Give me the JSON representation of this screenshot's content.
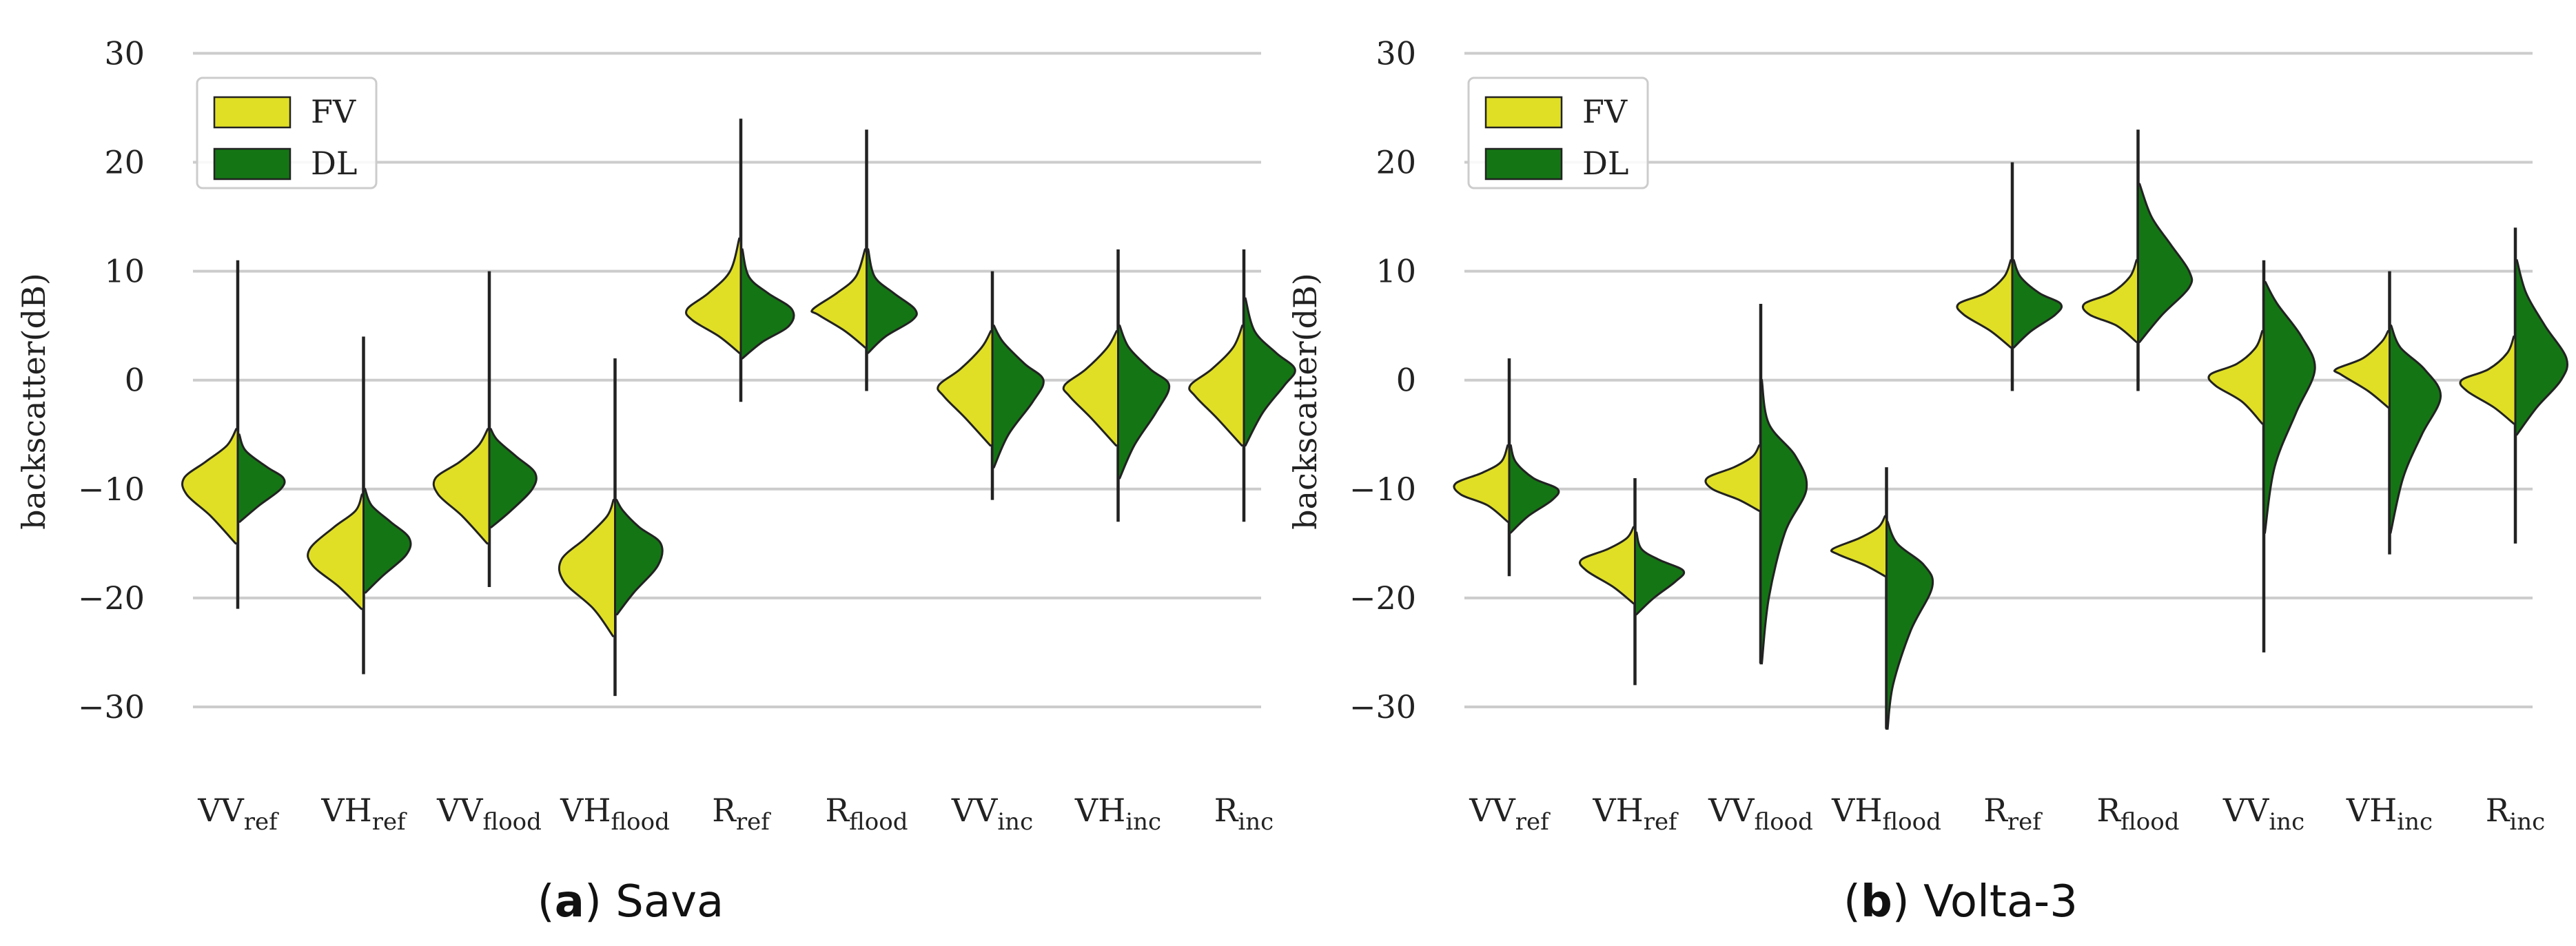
{
  "chart_data": [
    {
      "type": "violin",
      "id": "sava",
      "caption_letter": "a",
      "caption_name": "Sava",
      "title": "",
      "xlabel": "",
      "ylabel": "backscatter(dB)",
      "ylim": [
        -35,
        33
      ],
      "yticks": [
        30,
        20,
        10,
        0,
        -10,
        -20,
        -30
      ],
      "ytick_labels": [
        "30",
        "20",
        "10",
        "0",
        "−10",
        "−20",
        "−30"
      ],
      "legend": [
        {
          "name": "FV",
          "color": "#e0df25"
        },
        {
          "name": "DL",
          "color": "#147514"
        }
      ],
      "legend_position": "top-left",
      "categories": [
        {
          "main": "VV",
          "sub": "ref"
        },
        {
          "main": "VH",
          "sub": "ref"
        },
        {
          "main": "VV",
          "sub": "flood"
        },
        {
          "main": "VH",
          "sub": "flood"
        },
        {
          "main": "R",
          "sub": "ref"
        },
        {
          "main": "R",
          "sub": "flood"
        },
        {
          "main": "VV",
          "sub": "inc"
        },
        {
          "main": "VH",
          "sub": "inc"
        },
        {
          "main": "R",
          "sub": "inc"
        }
      ],
      "violins": [
        {
          "min": -21,
          "max": 11,
          "FV": {
            "y": [
              -15,
              -12.5,
              -10.5,
              -9,
              -7.5,
              -6,
              -4.5
            ],
            "w": [
              0.04,
              0.5,
              0.95,
              1.0,
              0.6,
              0.2,
              0.03
            ]
          },
          "DL": {
            "y": [
              -13,
              -11.5,
              -10,
              -9,
              -8,
              -6.5,
              -5
            ],
            "w": [
              0.04,
              0.4,
              0.8,
              0.85,
              0.55,
              0.15,
              0.03
            ]
          }
        },
        {
          "min": -27,
          "max": 4,
          "FV": {
            "y": [
              -21,
              -19,
              -17,
              -15.5,
              -13.5,
              -12,
              -10.5
            ],
            "w": [
              0.04,
              0.45,
              0.95,
              1.0,
              0.55,
              0.15,
              0.03
            ]
          },
          "DL": {
            "y": [
              -19.5,
              -18,
              -16,
              -14.5,
              -13,
              -11.5,
              -10
            ],
            "w": [
              0.04,
              0.35,
              0.8,
              0.85,
              0.5,
              0.15,
              0.03
            ]
          }
        },
        {
          "min": -19,
          "max": 10,
          "FV": {
            "y": [
              -15,
              -12.5,
              -10.5,
              -9,
              -7.5,
              -6,
              -4.5
            ],
            "w": [
              0.04,
              0.5,
              0.95,
              1.0,
              0.55,
              0.2,
              0.03
            ]
          },
          "DL": {
            "y": [
              -13.5,
              -12,
              -10,
              -8.5,
              -7,
              -5.5,
              -4.5
            ],
            "w": [
              0.04,
              0.4,
              0.8,
              0.85,
              0.5,
              0.15,
              0.03
            ]
          }
        },
        {
          "min": -29,
          "max": 2,
          "FV": {
            "y": [
              -23.5,
              -21,
              -18.5,
              -16.5,
              -14.5,
              -12.5,
              -11
            ],
            "w": [
              0.04,
              0.4,
              0.95,
              1.0,
              0.55,
              0.15,
              0.03
            ]
          },
          "DL": {
            "y": [
              -21.5,
              -19.5,
              -17,
              -15,
              -13.5,
              -12,
              -11
            ],
            "w": [
              0.04,
              0.35,
              0.8,
              0.85,
              0.45,
              0.15,
              0.03
            ]
          }
        },
        {
          "min": -2,
          "max": 24,
          "FV": {
            "y": [
              2.5,
              4,
              5.5,
              6.5,
              8,
              10,
              13
            ],
            "w": [
              0.03,
              0.4,
              0.9,
              1.0,
              0.6,
              0.2,
              0.03
            ]
          },
          "DL": {
            "y": [
              2,
              3.5,
              5,
              6.5,
              8,
              9.5,
              12
            ],
            "w": [
              0.03,
              0.4,
              0.9,
              0.95,
              0.5,
              0.15,
              0.03
            ]
          }
        },
        {
          "min": -1,
          "max": 23,
          "FV": {
            "y": [
              3,
              4.5,
              6,
              6.5,
              8,
              9.5,
              12
            ],
            "w": [
              0.03,
              0.4,
              0.9,
              1.0,
              0.55,
              0.2,
              0.03
            ]
          },
          "DL": {
            "y": [
              2.5,
              4,
              5.5,
              6.5,
              8,
              9.5,
              12
            ],
            "w": [
              0.03,
              0.35,
              0.85,
              0.9,
              0.5,
              0.15,
              0.03
            ]
          }
        },
        {
          "min": -11,
          "max": 10,
          "FV": {
            "y": [
              -6,
              -3.5,
              -1.5,
              -0.5,
              1,
              3,
              4.5
            ],
            "w": [
              0.04,
              0.5,
              0.9,
              1.0,
              0.6,
              0.2,
              0.03
            ]
          },
          "DL": {
            "y": [
              -8,
              -5,
              -2,
              0,
              1.5,
              3.5,
              5
            ],
            "w": [
              0.03,
              0.3,
              0.75,
              0.95,
              0.6,
              0.2,
              0.03
            ]
          }
        },
        {
          "min": -13,
          "max": 12,
          "FV": {
            "y": [
              -6,
              -3.5,
              -1.5,
              -0.5,
              1,
              3,
              4.5
            ],
            "w": [
              0.04,
              0.5,
              0.9,
              1.0,
              0.6,
              0.2,
              0.03
            ]
          },
          "DL": {
            "y": [
              -9,
              -6,
              -3,
              -0.5,
              1,
              3,
              5
            ],
            "w": [
              0.03,
              0.3,
              0.7,
              0.95,
              0.6,
              0.2,
              0.03
            ]
          }
        },
        {
          "min": -13,
          "max": 12,
          "FV": {
            "y": [
              -6,
              -3.5,
              -1.5,
              -0.5,
              1,
              3,
              5
            ],
            "w": [
              0.04,
              0.5,
              0.9,
              1.0,
              0.6,
              0.2,
              0.03
            ]
          },
          "DL": {
            "y": [
              -6,
              -3,
              -0.5,
              1,
              2.5,
              4.5,
              7.5
            ],
            "w": [
              0.03,
              0.35,
              0.75,
              0.95,
              0.6,
              0.2,
              0.03
            ]
          }
        }
      ]
    },
    {
      "type": "violin",
      "id": "volta",
      "caption_letter": "b",
      "caption_name": "Volta-3",
      "title": "",
      "xlabel": "",
      "ylabel": "backscatter(dB)",
      "ylim": [
        -35,
        33
      ],
      "yticks": [
        30,
        20,
        10,
        0,
        -10,
        -20,
        -30
      ],
      "ytick_labels": [
        "30",
        "20",
        "10",
        "0",
        "−10",
        "−20",
        "−30"
      ],
      "legend": [
        {
          "name": "FV",
          "color": "#e0df25"
        },
        {
          "name": "DL",
          "color": "#147514"
        }
      ],
      "legend_position": "top-left",
      "categories": [
        {
          "main": "VV",
          "sub": "ref"
        },
        {
          "main": "VH",
          "sub": "ref"
        },
        {
          "main": "VV",
          "sub": "flood"
        },
        {
          "main": "VH",
          "sub": "flood"
        },
        {
          "main": "R",
          "sub": "ref"
        },
        {
          "main": "R",
          "sub": "flood"
        },
        {
          "main": "VV",
          "sub": "inc"
        },
        {
          "main": "VH",
          "sub": "inc"
        },
        {
          "main": "R",
          "sub": "inc"
        }
      ],
      "violins": [
        {
          "min": -18,
          "max": 2,
          "FV": {
            "y": [
              -13,
              -11.5,
              -10.5,
              -9.5,
              -8.5,
              -7.5,
              -6
            ],
            "w": [
              0.03,
              0.4,
              0.9,
              1.0,
              0.5,
              0.15,
              0.03
            ]
          },
          "DL": {
            "y": [
              -14,
              -12.5,
              -11,
              -10,
              -9,
              -7.5,
              -6
            ],
            "w": [
              0.03,
              0.35,
              0.8,
              0.9,
              0.45,
              0.12,
              0.03
            ]
          }
        },
        {
          "min": -28,
          "max": -9,
          "FV": {
            "y": [
              -20.5,
              -19,
              -17.5,
              -16.5,
              -15.5,
              -14.5,
              -13.5
            ],
            "w": [
              0.03,
              0.4,
              0.9,
              1.0,
              0.5,
              0.15,
              0.03
            ]
          },
          "DL": {
            "y": [
              -21.5,
              -20,
              -18.5,
              -17.5,
              -16.5,
              -15.5,
              -14
            ],
            "w": [
              0.03,
              0.35,
              0.75,
              0.9,
              0.45,
              0.12,
              0.03
            ]
          }
        },
        {
          "min": -26,
          "max": 7,
          "FV": {
            "y": [
              -12,
              -11,
              -10,
              -9,
              -8,
              -7,
              -6
            ],
            "w": [
              0.03,
              0.4,
              0.9,
              1.0,
              0.5,
              0.15,
              0.03
            ]
          },
          "DL": {
            "y": [
              -26,
              -20,
              -14,
              -10,
              -7,
              -4,
              0
            ],
            "w": [
              0.02,
              0.15,
              0.45,
              0.85,
              0.65,
              0.15,
              0.02
            ]
          }
        },
        {
          "min": -32,
          "max": -8,
          "FV": {
            "y": [
              -18,
              -17,
              -16,
              -15.5,
              -14.5,
              -13.5,
              -12.5
            ],
            "w": [
              0.03,
              0.4,
              0.9,
              1.0,
              0.5,
              0.15,
              0.03
            ]
          },
          "DL": {
            "y": [
              -32,
              -28,
              -23,
              -19,
              -17,
              -15,
              -13
            ],
            "w": [
              0.02,
              0.12,
              0.45,
              0.85,
              0.7,
              0.2,
              0.02
            ]
          }
        },
        {
          "min": -1,
          "max": 20,
          "FV": {
            "y": [
              3,
              4.5,
              6,
              7,
              8,
              9.5,
              11
            ],
            "w": [
              0.03,
              0.4,
              0.9,
              1.0,
              0.5,
              0.15,
              0.03
            ]
          },
          "DL": {
            "y": [
              3,
              4.5,
              6,
              7,
              8,
              9.5,
              11
            ],
            "w": [
              0.03,
              0.35,
              0.8,
              0.9,
              0.5,
              0.15,
              0.03
            ]
          }
        },
        {
          "min": -1,
          "max": 23,
          "FV": {
            "y": [
              3.5,
              5,
              6,
              7,
              8,
              9.5,
              11
            ],
            "w": [
              0.03,
              0.4,
              0.9,
              1.0,
              0.5,
              0.15,
              0.03
            ]
          },
          "DL": {
            "y": [
              3.5,
              6,
              8.5,
              10,
              12.5,
              15,
              18
            ],
            "w": [
              0.03,
              0.45,
              0.95,
              0.95,
              0.6,
              0.25,
              0.03
            ]
          }
        },
        {
          "min": -25,
          "max": 11,
          "FV": {
            "y": [
              -4,
              -2,
              -0.5,
              0.5,
              1.5,
              3,
              4.5
            ],
            "w": [
              0.03,
              0.4,
              0.9,
              1.0,
              0.5,
              0.15,
              0.03
            ]
          },
          "DL": {
            "y": [
              -14,
              -8,
              -3,
              1,
              4,
              7,
              9
            ],
            "w": [
              0.02,
              0.2,
              0.6,
              0.95,
              0.7,
              0.25,
              0.03
            ]
          }
        },
        {
          "min": -16,
          "max": 10,
          "FV": {
            "y": [
              -2.5,
              -1,
              0.5,
              1,
              2,
              3.5,
              4.5
            ],
            "w": [
              0.03,
              0.4,
              0.9,
              1.0,
              0.5,
              0.15,
              0.03
            ]
          },
          "DL": {
            "y": [
              -14,
              -9,
              -5,
              -1.5,
              1,
              3,
              5
            ],
            "w": [
              0.02,
              0.25,
              0.6,
              0.95,
              0.65,
              0.2,
              0.03
            ]
          }
        },
        {
          "min": -15,
          "max": 14,
          "FV": {
            "y": [
              -4,
              -2.5,
              -1,
              0,
              1,
              2.5,
              4
            ],
            "w": [
              0.03,
              0.4,
              0.9,
              1.0,
              0.5,
              0.15,
              0.03
            ]
          },
          "DL": {
            "y": [
              -5,
              -2.5,
              0,
              2,
              5,
              8,
              11
            ],
            "w": [
              0.03,
              0.4,
              0.85,
              0.95,
              0.55,
              0.2,
              0.03
            ]
          }
        }
      ]
    }
  ]
}
